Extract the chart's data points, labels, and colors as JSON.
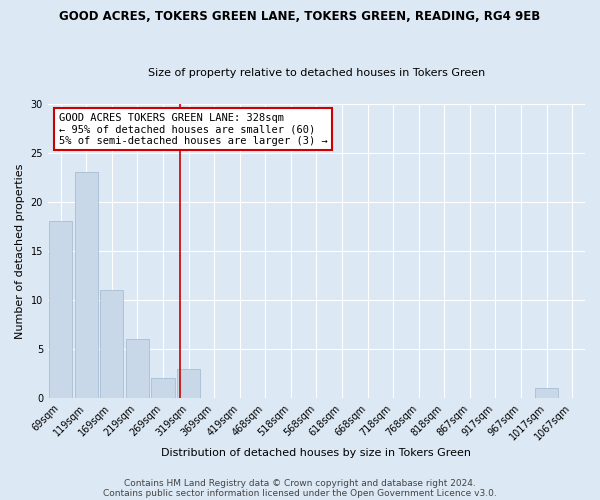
{
  "title": "GOOD ACRES, TOKERS GREEN LANE, TOKERS GREEN, READING, RG4 9EB",
  "subtitle": "Size of property relative to detached houses in Tokers Green",
  "xlabel": "Distribution of detached houses by size in Tokers Green",
  "ylabel": "Number of detached properties",
  "bar_color": "#c8d8e8",
  "bar_edgecolor": "#a0b8d0",
  "background_color": "#dce8f4",
  "grid_color": "#ffffff",
  "bin_labels": [
    "69sqm",
    "119sqm",
    "169sqm",
    "219sqm",
    "269sqm",
    "319sqm",
    "369sqm",
    "419sqm",
    "468sqm",
    "518sqm",
    "568sqm",
    "618sqm",
    "668sqm",
    "718sqm",
    "768sqm",
    "818sqm",
    "867sqm",
    "917sqm",
    "967sqm",
    "1017sqm",
    "1067sqm"
  ],
  "bin_values": [
    18,
    23,
    11,
    6,
    2,
    3,
    0,
    0,
    0,
    0,
    0,
    0,
    0,
    0,
    0,
    0,
    0,
    0,
    0,
    1,
    0
  ],
  "vline_color": "#cc0000",
  "annotation_text": "GOOD ACRES TOKERS GREEN LANE: 328sqm\n← 95% of detached houses are smaller (60)\n5% of semi-detached houses are larger (3) →",
  "annotation_box_color": "white",
  "annotation_box_edgecolor": "#cc0000",
  "ylim": [
    0,
    30
  ],
  "yticks": [
    0,
    5,
    10,
    15,
    20,
    25,
    30
  ],
  "footer1": "Contains HM Land Registry data © Crown copyright and database right 2024.",
  "footer2": "Contains public sector information licensed under the Open Government Licence v3.0.",
  "title_fontsize": 8.5,
  "subtitle_fontsize": 8,
  "axis_label_fontsize": 8,
  "tick_fontsize": 7,
  "annotation_fontsize": 7.5,
  "footer_fontsize": 6.5
}
